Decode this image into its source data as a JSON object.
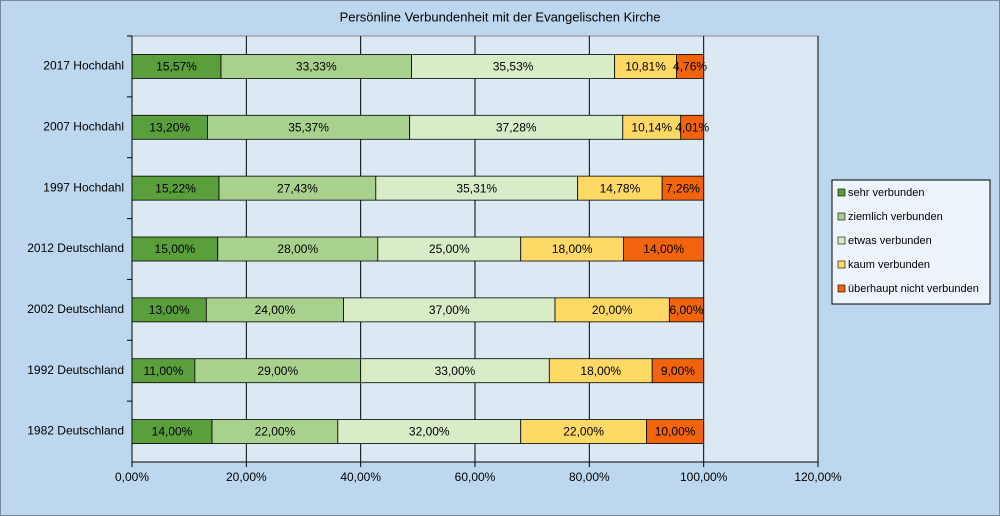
{
  "chart_data": {
    "type": "stacked-barh",
    "title": "Persönline  Verbundenheit  mit der Evangelischen  Kirche",
    "categories": [
      "2017 Hochdahl",
      "2007 Hochdahl",
      "1997 Hochdahl",
      "2012 Deutschland",
      "2002 Deutschland",
      "1992 Deutschland",
      "1982 Deutschland"
    ],
    "series": [
      {
        "name": "sehr verbunden",
        "color": "#5b9e3c",
        "values": [
          15.57,
          13.2,
          15.22,
          15.0,
          13.0,
          11.0,
          14.0
        ],
        "value_labels": [
          "15,57%",
          "13,20%",
          "15,22%",
          "15,00%",
          "13,00%",
          "11,00%",
          "14,00%"
        ]
      },
      {
        "name": "ziemlich verbunden",
        "color": "#a9d18e",
        "values": [
          33.33,
          35.37,
          27.43,
          28.0,
          24.0,
          29.0,
          22.0
        ],
        "value_labels": [
          "33,33%",
          "35,37%",
          "27,43%",
          "28,00%",
          "24,00%",
          "29,00%",
          "22,00%"
        ]
      },
      {
        "name": "etwas verbunden",
        "color": "#d9ecc8",
        "values": [
          35.53,
          37.28,
          35.31,
          25.0,
          37.0,
          33.0,
          32.0
        ],
        "value_labels": [
          "35,53%",
          "37,28%",
          "35,31%",
          "25,00%",
          "37,00%",
          "33,00%",
          "32,00%"
        ]
      },
      {
        "name": "kaum verbunden",
        "color": "#ffd966",
        "values": [
          10.81,
          10.14,
          14.78,
          18.0,
          20.0,
          18.0,
          22.0
        ],
        "value_labels": [
          "10,81%",
          "10,14%",
          "14,78%",
          "18,00%",
          "20,00%",
          "18,00%",
          "22,00%"
        ]
      },
      {
        "name": "überhaupt nicht verbunden",
        "color": "#f2640c",
        "values": [
          4.76,
          4.01,
          7.26,
          14.0,
          6.0,
          9.0,
          10.0
        ],
        "value_labels": [
          "4,76%",
          "4,01%",
          "7,26%",
          "14,00%",
          "6,00%",
          "9,00%",
          "10,00%"
        ]
      }
    ],
    "xlim": [
      0,
      120
    ],
    "xticks": [
      {
        "value": 0,
        "label": "0,00%"
      },
      {
        "value": 20,
        "label": "20,00%"
      },
      {
        "value": 40,
        "label": "40,00%"
      },
      {
        "value": 60,
        "label": "60,00%"
      },
      {
        "value": 80,
        "label": "80,00%"
      },
      {
        "value": 100,
        "label": "100,00%"
      },
      {
        "value": 120,
        "label": "120,00%"
      }
    ],
    "grid": true,
    "legend": "right"
  }
}
